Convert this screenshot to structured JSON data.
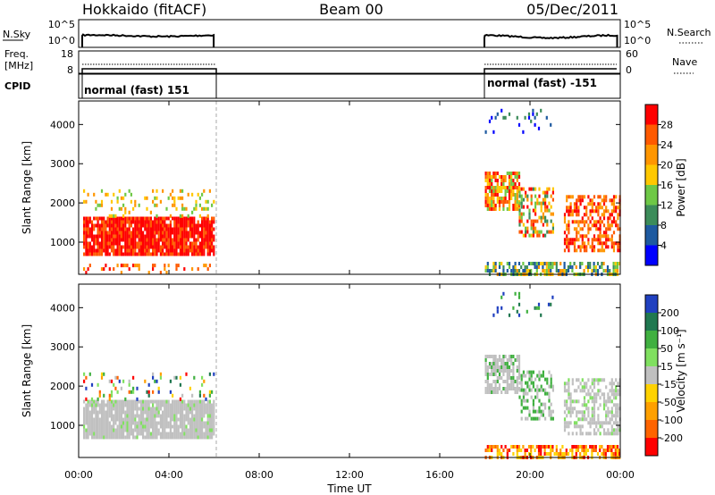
{
  "header": {
    "title_left": "Hokkaido (fitACF)",
    "title_center": "Beam 00",
    "title_right": "05/Dec/2011"
  },
  "status_panels": {
    "nsky_label": "N.Sky",
    "nsearch_label": "N.Search",
    "nsky_ticks": [
      "10^5",
      "10^0"
    ],
    "nsearch_ticks": [
      "10^5",
      "10^0"
    ],
    "freq_label_line1": "Freq.",
    "freq_label_line2": "[MHz]",
    "freq_ticks": [
      "18",
      "8"
    ],
    "nave_label": "Nave",
    "nave_ticks": [
      "60",
      "0"
    ],
    "cpid_label": "CPID",
    "cpid_left": "normal (fast) 151",
    "cpid_right": "normal (fast) -151"
  },
  "axes": {
    "x_ticks": [
      "00:00",
      "04:00",
      "08:00",
      "12:00",
      "16:00",
      "20:00",
      "00:00"
    ],
    "x_label": "Time UT",
    "y_ticks": [
      "4000",
      "3000",
      "2000",
      "1000"
    ],
    "y_label": "Slant Range [km]"
  },
  "power_scale": {
    "label": "Power [dB]",
    "ticks": [
      "28",
      "24",
      "20",
      "16",
      "12",
      "8",
      "4"
    ],
    "colors": [
      "#ff0000",
      "#ff5a00",
      "#ff9600",
      "#ffc800",
      "#6ec846",
      "#3c8c5a",
      "#1e5aa0",
      "#0000ff"
    ]
  },
  "velocity_scale": {
    "label": "Velocity [m s⁻¹]",
    "ticks": [
      "200",
      "100",
      "50",
      "15",
      "-15",
      "-50",
      "-100",
      "-200"
    ],
    "colors": [
      "#2040c0",
      "#207850",
      "#40b040",
      "#80e060",
      "#c0c0c0",
      "#ffd200",
      "#ffa000",
      "#ff6400",
      "#ff0000"
    ]
  },
  "chart_data": [
    {
      "type": "heatmap",
      "title": "Beam 00",
      "xlabel": "Time UT",
      "ylabel": "Slant Range [km]",
      "xlim": [
        0,
        24
      ],
      "ylim": [
        180,
        4600
      ],
      "colorbar": "Power [dB]",
      "data_intervals": [
        [
          0,
          6
        ],
        [
          18,
          24
        ]
      ]
    },
    {
      "type": "heatmap",
      "xlabel": "Time UT",
      "ylabel": "Slant Range [km]",
      "xlim": [
        0,
        24
      ],
      "ylim": [
        180,
        4600
      ],
      "colorbar": "Velocity [m s⁻¹]",
      "data_intervals": [
        [
          0,
          6
        ],
        [
          18,
          24
        ]
      ]
    }
  ]
}
